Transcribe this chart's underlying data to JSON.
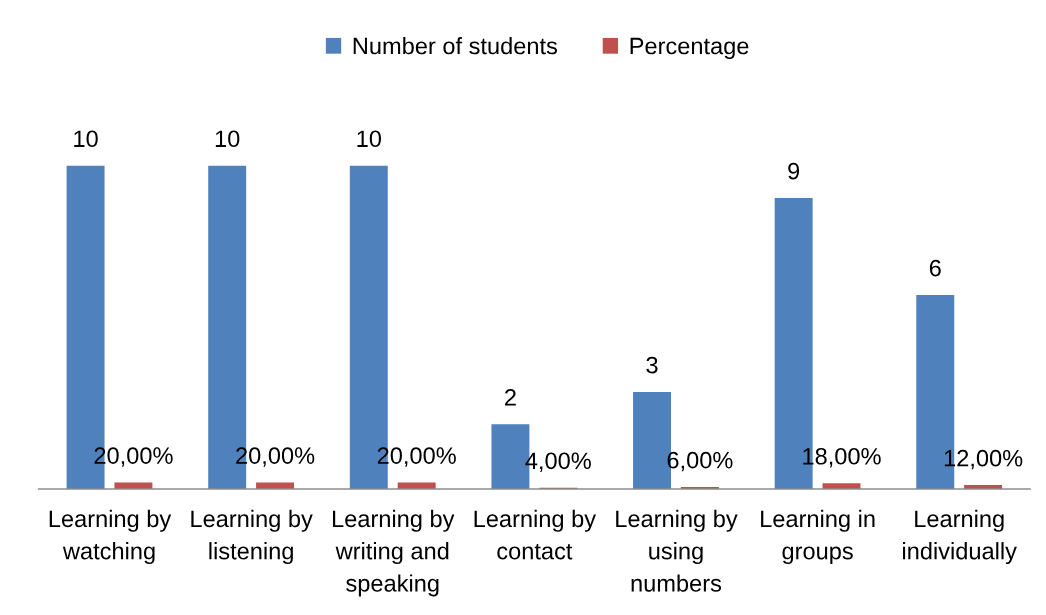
{
  "chart_data": {
    "type": "bar",
    "categories": [
      "Learning by\nwatching",
      "Learning by\nlistening",
      "Learning by\nwriting and\nspeaking",
      "Learning by\ncontact",
      "Learning by\nusing\nnumbers",
      "Learning in\ngroups",
      "Learning\nindividually"
    ],
    "series": [
      {
        "name": "Number of students",
        "color": "#4f81bd",
        "values": [
          10,
          10,
          10,
          2,
          3,
          9,
          6
        ],
        "value_labels": [
          "10",
          "10",
          "10",
          "2",
          "3",
          "9",
          "6"
        ]
      },
      {
        "name": "Percentage",
        "color": "#c0504d",
        "values": [
          0.2,
          0.2,
          0.2,
          0.04,
          0.06,
          0.18,
          0.12
        ],
        "value_labels": [
          "20,00%",
          "20,00%",
          "20,00%",
          "4,00%",
          "6,00%",
          "18,00%",
          "12,00%"
        ]
      }
    ],
    "legend": "top"
  }
}
